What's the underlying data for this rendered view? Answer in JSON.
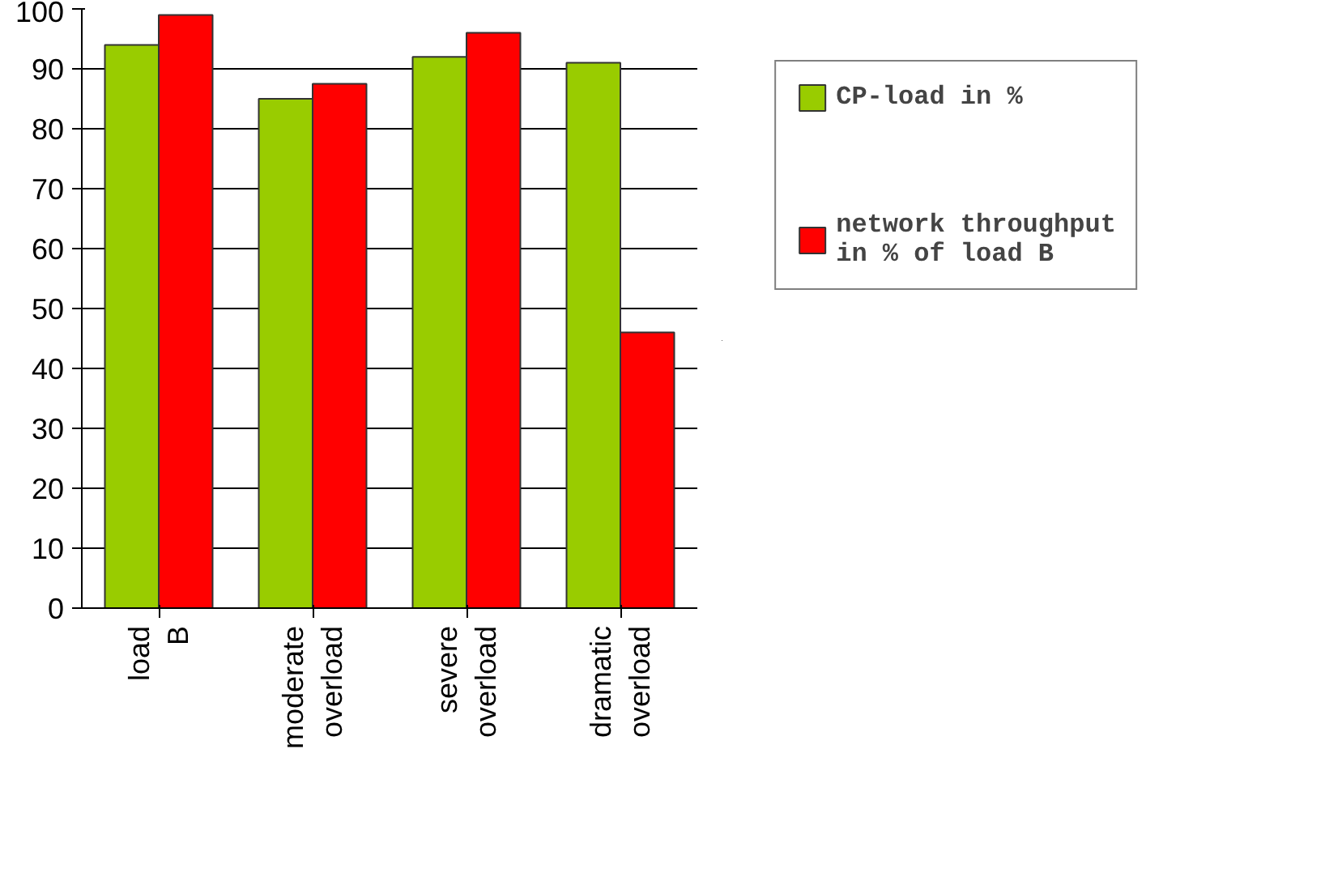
{
  "chart_data": {
    "type": "bar",
    "categories": [
      "load B",
      "moderate overload",
      "severe overload",
      "dramatic overload"
    ],
    "series": [
      {
        "name": "CP-load in %",
        "color": "#99cc00",
        "values": [
          94,
          85,
          92,
          91
        ]
      },
      {
        "name": "network throughput in % of load B",
        "color": "#ff0000",
        "values": [
          99,
          87.5,
          96,
          46
        ]
      }
    ],
    "ylim": [
      0,
      100
    ],
    "yticks": [
      0,
      10,
      20,
      30,
      40,
      50,
      60,
      70,
      80,
      90,
      100
    ],
    "grid": "y",
    "legend": "right"
  }
}
